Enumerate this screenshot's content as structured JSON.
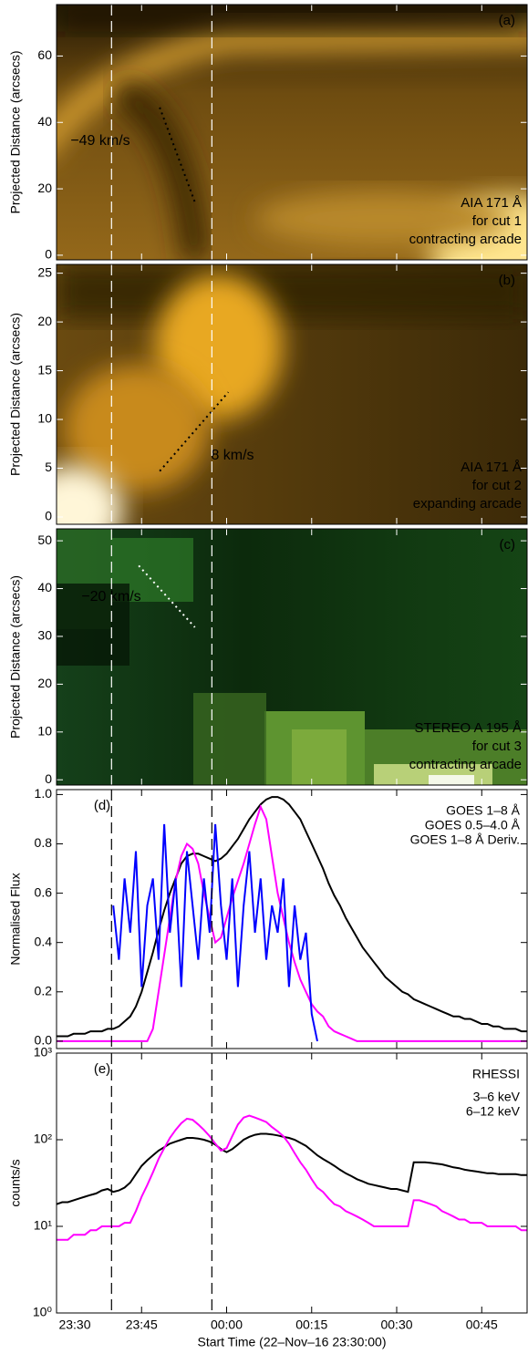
{
  "shared_x": {
    "xlim": [
      0,
      83
    ],
    "xticks": [
      {
        "value": 0,
        "label": "23:30"
      },
      {
        "value": 15,
        "label": "23:45"
      },
      {
        "value": 30,
        "label": "00:00"
      },
      {
        "value": 45,
        "label": "00:15"
      },
      {
        "value": 60,
        "label": "00:30"
      },
      {
        "value": 75,
        "label": "00:45"
      }
    ],
    "xlabel": "Start Time (22–Nov–16 23:30:00)",
    "vlines": [
      9.7,
      27.4
    ]
  },
  "chart_data": [
    {
      "type": "image",
      "panel_label": "(a)",
      "ylabel": "Projected Distance (arcsecs)",
      "ylim": [
        -1.4,
        75.5
      ],
      "yticks": [
        0,
        20,
        40,
        60
      ],
      "annotation": "−49 km/s",
      "fit_line": {
        "x": [
          18.2,
          24.4
        ],
        "y": [
          44.5,
          16
        ]
      },
      "label_lines": [
        "AIA 171 Å",
        "for cut 1",
        "contracting arcade"
      ]
    },
    {
      "type": "image",
      "panel_label": "(b)",
      "ylabel": "Projected Distance (arcsecs)",
      "ylim": [
        -0.75,
        25.9
      ],
      "yticks": [
        0,
        5,
        10,
        15,
        20,
        25
      ],
      "annotation": "8 km/s",
      "fit_line": {
        "x": [
          18.2,
          30.3
        ],
        "y": [
          4.7,
          12.8
        ]
      },
      "label_lines": [
        "AIA 171 Å",
        "for cut 2",
        "expanding arcade"
      ]
    },
    {
      "type": "image",
      "panel_label": "(c)",
      "ylabel": "Projected Distance (arcsecs)",
      "ylim": [
        -1.1,
        52.5
      ],
      "yticks": [
        0,
        10,
        20,
        30,
        40,
        50
      ],
      "annotation": "−20 km/s",
      "fit_line": {
        "x": [
          14.5,
          24.4
        ],
        "y": [
          44.8,
          31.9
        ]
      },
      "label_lines": [
        "STEREO A 195 Å",
        "for cut 3",
        "contracting arcade"
      ]
    },
    {
      "type": "line",
      "panel_label": "(d)",
      "ylabel": "Normalised Flux",
      "ylim": [
        -0.03,
        1.02
      ],
      "yticks": [
        {
          "value": 0,
          "label": "0.0"
        },
        0.2,
        0.4,
        0.6,
        0.8,
        {
          "value": 1,
          "label": "1.0"
        }
      ],
      "x": [
        0,
        1,
        2,
        3,
        4,
        5,
        6,
        7,
        8,
        9,
        10,
        11,
        12,
        13,
        14,
        15,
        16,
        17,
        18,
        19,
        20,
        21,
        22,
        23,
        24,
        25,
        26,
        27,
        28,
        29,
        30,
        31,
        32,
        33,
        34,
        35,
        36,
        37,
        38,
        39,
        40,
        41,
        42,
        43,
        44,
        45,
        46,
        47,
        48,
        49,
        50,
        51,
        52,
        53,
        54,
        55,
        56,
        57,
        58,
        59,
        60,
        61,
        62,
        63,
        64,
        65,
        66,
        67,
        68,
        69,
        70,
        71,
        72,
        73,
        74,
        75,
        76,
        77,
        78,
        79,
        80,
        81,
        82,
        83
      ],
      "series": [
        {
          "name": "GOES 1–8 Å",
          "color": "#000000",
          "values": [
            0.02,
            0.02,
            0.02,
            0.03,
            0.03,
            0.03,
            0.04,
            0.04,
            0.04,
            0.05,
            0.05,
            0.06,
            0.08,
            0.1,
            0.14,
            0.2,
            0.28,
            0.36,
            0.45,
            0.53,
            0.6,
            0.66,
            0.72,
            0.75,
            0.76,
            0.76,
            0.75,
            0.74,
            0.73,
            0.74,
            0.76,
            0.79,
            0.82,
            0.86,
            0.9,
            0.93,
            0.96,
            0.98,
            0.99,
            0.99,
            0.98,
            0.96,
            0.93,
            0.9,
            0.85,
            0.8,
            0.75,
            0.7,
            0.64,
            0.59,
            0.55,
            0.5,
            0.46,
            0.42,
            0.38,
            0.35,
            0.32,
            0.29,
            0.26,
            0.24,
            0.22,
            0.2,
            0.19,
            0.17,
            0.16,
            0.15,
            0.14,
            0.13,
            0.12,
            0.11,
            0.1,
            0.1,
            0.09,
            0.09,
            0.08,
            0.07,
            0.07,
            0.06,
            0.06,
            0.05,
            0.05,
            0.05,
            0.04,
            0.04
          ]
        },
        {
          "name": "GOES 0.5–4.0 Å",
          "color": "#ff00ff",
          "values": [
            0,
            0,
            0,
            0,
            0,
            0,
            0,
            0,
            0,
            0,
            0,
            0,
            0,
            0,
            0,
            0,
            0,
            0.05,
            0.2,
            0.35,
            0.5,
            0.65,
            0.75,
            0.8,
            0.78,
            0.72,
            0.6,
            0.5,
            0.4,
            0.42,
            0.5,
            0.58,
            0.65,
            0.72,
            0.8,
            0.88,
            0.95,
            0.9,
            0.75,
            0.6,
            0.5,
            0.4,
            0.32,
            0.25,
            0.2,
            0.15,
            0.12,
            0.1,
            0.06,
            0.04,
            0.03,
            0.02,
            0.01,
            0,
            0,
            0,
            0,
            0,
            0,
            0,
            0,
            0,
            0,
            0,
            0,
            0,
            0,
            0,
            0,
            0,
            0,
            0,
            0,
            0,
            0,
            0,
            0,
            0,
            0,
            0,
            0,
            0,
            0,
            0
          ]
        },
        {
          "name": "GOES 1–8 Å Deriv.",
          "color": "#0000ff",
          "values": [
            null,
            null,
            null,
            null,
            null,
            null,
            null,
            null,
            null,
            null,
            0.55,
            0.33,
            0.66,
            0.44,
            0.77,
            0.22,
            0.55,
            0.66,
            0.33,
            0.88,
            0.44,
            0.66,
            0.22,
            0.77,
            0.55,
            0.33,
            0.66,
            0.44,
            0.88,
            0.55,
            0.33,
            0.66,
            0.22,
            0.55,
            0.77,
            0.44,
            0.66,
            0.33,
            0.55,
            0.44,
            0.66,
            0.22,
            0.55,
            0.33,
            0.44,
            0.11,
            0,
            null,
            null,
            null,
            null,
            null,
            null,
            null,
            null,
            null,
            null,
            null,
            null,
            null,
            null,
            null,
            null,
            null,
            null,
            null,
            null,
            null,
            null,
            null,
            null,
            null,
            null,
            null,
            null,
            null,
            null,
            null,
            null,
            null,
            null,
            null,
            null,
            null
          ]
        }
      ]
    },
    {
      "type": "line",
      "panel_label": "(e)",
      "ylabel": "counts/s",
      "log_y": true,
      "ylim": [
        1,
        1000
      ],
      "yticks": [
        {
          "value": 1,
          "label": "10⁰"
        },
        {
          "value": 10,
          "label": "10¹"
        },
        {
          "value": 100,
          "label": "10²"
        },
        {
          "value": 1000,
          "label": "10³"
        }
      ],
      "legend_title": "RHESSI",
      "x": [
        0,
        1,
        2,
        3,
        4,
        5,
        6,
        7,
        8,
        9,
        10,
        11,
        12,
        13,
        14,
        15,
        16,
        17,
        18,
        19,
        20,
        21,
        22,
        23,
        24,
        25,
        26,
        27,
        28,
        29,
        30,
        31,
        32,
        33,
        34,
        35,
        36,
        37,
        38,
        39,
        40,
        41,
        42,
        43,
        44,
        45,
        46,
        47,
        48,
        49,
        50,
        51,
        52,
        53,
        54,
        55,
        56,
        57,
        58,
        59,
        60,
        61,
        62,
        63,
        64,
        65,
        66,
        67,
        68,
        69,
        70,
        71,
        72,
        73,
        74,
        75,
        76,
        77,
        78,
        79,
        80,
        81,
        82,
        83
      ],
      "series": [
        {
          "name": "3–6 keV",
          "color": "#000000",
          "values": [
            18,
            19,
            19,
            20,
            21,
            22,
            23,
            24,
            26,
            27,
            25,
            26,
            28,
            32,
            40,
            50,
            58,
            66,
            75,
            82,
            90,
            95,
            100,
            105,
            105,
            103,
            100,
            95,
            88,
            78,
            72,
            78,
            88,
            100,
            108,
            114,
            117,
            117,
            115,
            112,
            108,
            105,
            100,
            92,
            85,
            75,
            66,
            60,
            55,
            50,
            45,
            41,
            38,
            35,
            33,
            31,
            30,
            29,
            28,
            27,
            27,
            26,
            25,
            55,
            55,
            55,
            54,
            53,
            52,
            50,
            48,
            47,
            45,
            44,
            43,
            42,
            41,
            41,
            40,
            40,
            40,
            40,
            39,
            39
          ]
        },
        {
          "name": "6–12 keV",
          "color": "#ff00ff",
          "values": [
            7,
            7,
            7,
            8,
            8,
            8,
            9,
            9,
            10,
            10,
            10,
            10,
            11,
            11,
            15,
            22,
            30,
            42,
            60,
            80,
            105,
            130,
            155,
            175,
            170,
            150,
            130,
            110,
            90,
            75,
            80,
            110,
            150,
            180,
            190,
            180,
            170,
            160,
            140,
            125,
            110,
            90,
            70,
            55,
            45,
            35,
            28,
            25,
            21,
            18,
            17,
            15,
            14,
            13,
            12,
            11,
            10,
            10,
            10,
            10,
            10,
            10,
            10,
            20,
            20,
            19,
            18,
            17,
            15,
            14,
            13,
            12,
            12,
            11,
            11,
            11,
            10,
            10,
            10,
            10,
            10,
            10,
            9,
            9
          ]
        }
      ]
    }
  ]
}
